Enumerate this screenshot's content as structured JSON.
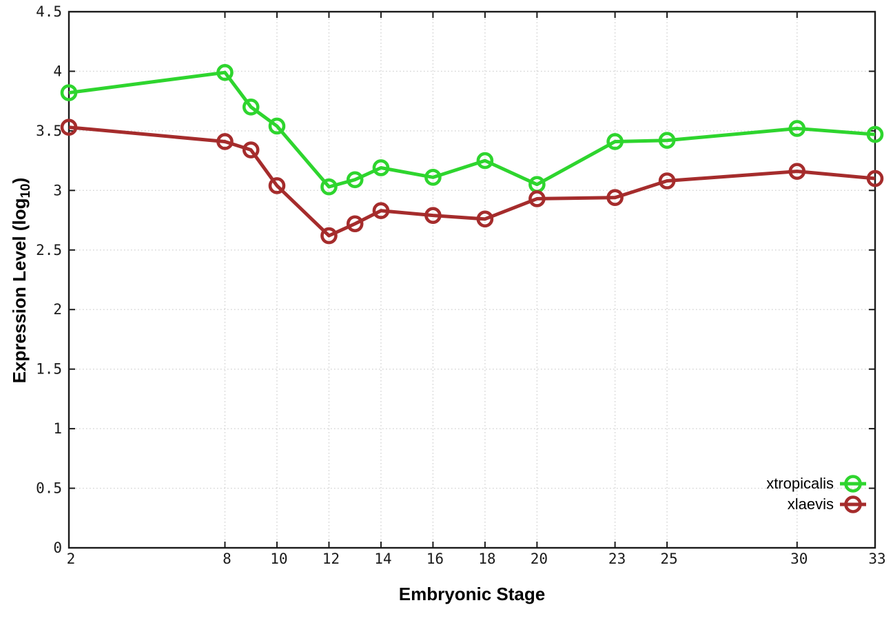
{
  "chart_data": {
    "type": "line",
    "title": "",
    "xlabel": "Embryonic Stage",
    "ylabel": "Expression Level (log10)",
    "ylabel_text": "Expression Level (log",
    "ylabel_sub": "10",
    "ylabel_close": ")",
    "xlim": [
      2,
      33
    ],
    "ylim": [
      0,
      4.5
    ],
    "x_ticks": [
      2,
      8,
      10,
      12,
      14,
      16,
      18,
      20,
      23,
      25,
      30,
      33
    ],
    "y_ticks": [
      0,
      0.5,
      1,
      1.5,
      2,
      2.5,
      3,
      3.5,
      4,
      4.5
    ],
    "grid": true,
    "grid_style": "dotted",
    "legend_position": "bottom-right",
    "x": [
      2,
      8,
      9,
      10,
      12,
      13,
      14,
      16,
      18,
      20,
      23,
      25,
      30,
      33
    ],
    "series": [
      {
        "name": "xtropicalis",
        "color": "#2ed52e",
        "values": [
          3.82,
          3.99,
          3.7,
          3.54,
          3.03,
          3.09,
          3.19,
          3.11,
          3.25,
          3.05,
          3.41,
          3.42,
          3.52,
          3.47
        ]
      },
      {
        "name": "xlaevis",
        "color": "#a52c2c",
        "values": [
          3.53,
          3.41,
          3.34,
          3.04,
          2.62,
          2.72,
          2.83,
          2.79,
          2.76,
          2.93,
          2.94,
          3.08,
          3.16,
          3.1
        ]
      }
    ],
    "colors": {
      "border": "#1a1a1a",
      "grid": "#d2d2d2",
      "tick_text": "#1a1a1a"
    }
  }
}
